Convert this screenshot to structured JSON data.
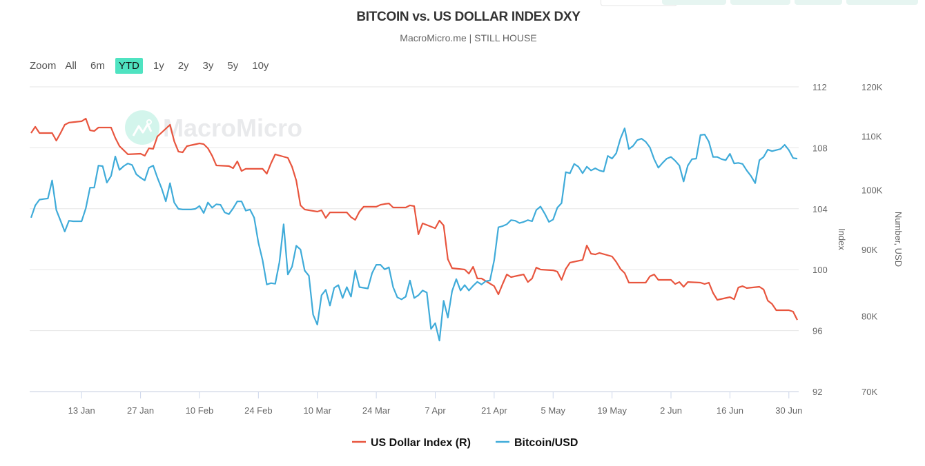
{
  "title": "BITCOIN vs. US DOLLAR INDEX DXY",
  "subtitle": "MacroMicro.me | STILL HOUSE",
  "watermark": "MacroMicro",
  "range_selector": {
    "zoom_label": "Zoom",
    "buttons": [
      "All",
      "6m",
      "YTD",
      "1y",
      "2y",
      "3y",
      "5y",
      "10y"
    ],
    "selected": "YTD",
    "selected_color": "#4fe3c1"
  },
  "chart_data": {
    "type": "line",
    "title": "BITCOIN vs. US DOLLAR INDEX DXY",
    "x_axis": {
      "type": "datetime",
      "range": [
        "2025-01-01",
        "2025-07-02"
      ],
      "ticks": [
        "2025-01-13",
        "2025-01-27",
        "2025-02-10",
        "2025-02-24",
        "2025-03-10",
        "2025-03-24",
        "2025-04-07",
        "2025-04-21",
        "2025-05-05",
        "2025-05-19",
        "2025-06-02",
        "2025-06-16",
        "2025-06-30"
      ],
      "tick_labels": [
        "13 Jan",
        "27 Jan",
        "10 Feb",
        "24 Feb",
        "10 Mar",
        "24 Mar",
        "7 Apr",
        "21 Apr",
        "5 May",
        "19 May",
        "2 Jun",
        "16 Jun",
        "30 Jun"
      ]
    },
    "y_axes": [
      {
        "id": "index",
        "label": "Index",
        "scale": "linear",
        "range": [
          92,
          112
        ],
        "ticks": [
          92,
          96,
          100,
          104,
          108,
          112
        ],
        "tick_labels": [
          "92",
          "96",
          "100",
          "104",
          "108",
          "112"
        ]
      },
      {
        "id": "usd",
        "label": "Number, USD",
        "scale": "log",
        "range": [
          70000,
          120000
        ],
        "ticks": [
          70000,
          80000,
          90000,
          100000,
          110000,
          120000
        ],
        "tick_labels": [
          "70K",
          "80K",
          "90K",
          "100K",
          "110K",
          "120K"
        ]
      }
    ],
    "grid": true,
    "legend_position": "bottom-center",
    "series": [
      {
        "name": "US Dollar Index (R)",
        "axis": "index",
        "color": "#e8553e",
        "start_date": "2025-01-01",
        "frequency": "weekday",
        "values": [
          108.97,
          109.38,
          108.97,
          108.97,
          108.47,
          108.97,
          109.51,
          109.65,
          109.74,
          109.92,
          109.15,
          109.1,
          109.33,
          109.33,
          108.65,
          108.11,
          107.84,
          107.57,
          107.61,
          107.48,
          107.97,
          107.93,
          108.74,
          109.51,
          108.43,
          107.75,
          107.7,
          108.11,
          108.29,
          108.24,
          107.97,
          107.48,
          106.84,
          106.8,
          106.66,
          107.11,
          106.48,
          106.62,
          106.62,
          106.62,
          106.3,
          106.98,
          107.57,
          107.34,
          106.75,
          105.85,
          104.22,
          103.95,
          103.81,
          103.9,
          103.4,
          103.76,
          103.76,
          103.76,
          103.45,
          103.27,
          103.81,
          104.13,
          104.13,
          104.26,
          104.31,
          104.35,
          104.08,
          104.08,
          104.22,
          104.17,
          102.32,
          103.04,
          102.72,
          103.22,
          102.9,
          100.69,
          100.1,
          100.01,
          99.74,
          100.19,
          99.42,
          99.42,
          98.92,
          98.38,
          99.06,
          99.69,
          99.51,
          99.69,
          99.19,
          99.42,
          100.14,
          100.01,
          99.96,
          99.87,
          99.33,
          100.05,
          100.46,
          100.64,
          101.59,
          101.05,
          101.0,
          101.1,
          100.87,
          100.51,
          100.05,
          99.78,
          99.15,
          99.15,
          99.15,
          99.56,
          99.69,
          99.33,
          99.33,
          99.06,
          99.19,
          98.88,
          99.19,
          99.15,
          99.06,
          99.15,
          98.47,
          98.02,
          98.2,
          98.06,
          98.83,
          98.92,
          98.79,
          98.88,
          98.7,
          97.97,
          97.75,
          97.34,
          97.34,
          97.25,
          96.7
        ]
      },
      {
        "name": "Bitcoin/USD",
        "axis": "usd",
        "color": "#3fabd9",
        "start_date": "2025-01-01",
        "frequency": "daily",
        "values": [
          95200,
          97300,
          98300,
          98400,
          98500,
          101700,
          96500,
          94700,
          92900,
          94700,
          94600,
          94600,
          94600,
          96800,
          100400,
          100400,
          104400,
          104300,
          101300,
          102500,
          106100,
          103600,
          104300,
          104800,
          104500,
          102800,
          102200,
          101700,
          104000,
          104400,
          102200,
          100300,
          98000,
          101200,
          97800,
          96700,
          96600,
          96600,
          96600,
          96700,
          97200,
          96000,
          97800,
          96900,
          97500,
          97400,
          96100,
          95800,
          96800,
          98000,
          98000,
          96400,
          96600,
          95200,
          91100,
          88300,
          84600,
          84800,
          84700,
          88000,
          94100,
          86100,
          87300,
          90600,
          90000,
          86700,
          85900,
          80200,
          78800,
          83000,
          83800,
          81500,
          84100,
          84500,
          82600,
          84200,
          82800,
          86700,
          84200,
          84100,
          84000,
          86300,
          87600,
          87600,
          86900,
          87200,
          84200,
          82700,
          82400,
          82800,
          85200,
          82600,
          83000,
          83700,
          83400,
          78200,
          79000,
          76600,
          82200,
          79800,
          83600,
          85400,
          83700,
          84500,
          83700,
          84400,
          85000,
          84600,
          85100,
          85200,
          88300,
          93600,
          93800,
          94100,
          94800,
          94700,
          94300,
          94500,
          94800,
          94600,
          96500,
          97100,
          95900,
          94500,
          94900,
          96900,
          97700,
          103200,
          103000,
          104700,
          104200,
          103000,
          104200,
          103500,
          103900,
          103500,
          103300,
          106200,
          105700,
          106700,
          109500,
          111500,
          107500,
          108100,
          109200,
          109500,
          108900,
          107800,
          105600,
          104000,
          104900,
          105700,
          106000,
          105300,
          104400,
          101500,
          104400,
          105600,
          105700,
          110200,
          110300,
          108900,
          106000,
          106000,
          105600,
          105400,
          106600,
          104800,
          104900,
          104700,
          103500,
          102500,
          101200,
          105400,
          106000,
          107400,
          107100,
          107300,
          107500,
          108300,
          107300,
          105800,
          105700
        ]
      }
    ]
  }
}
